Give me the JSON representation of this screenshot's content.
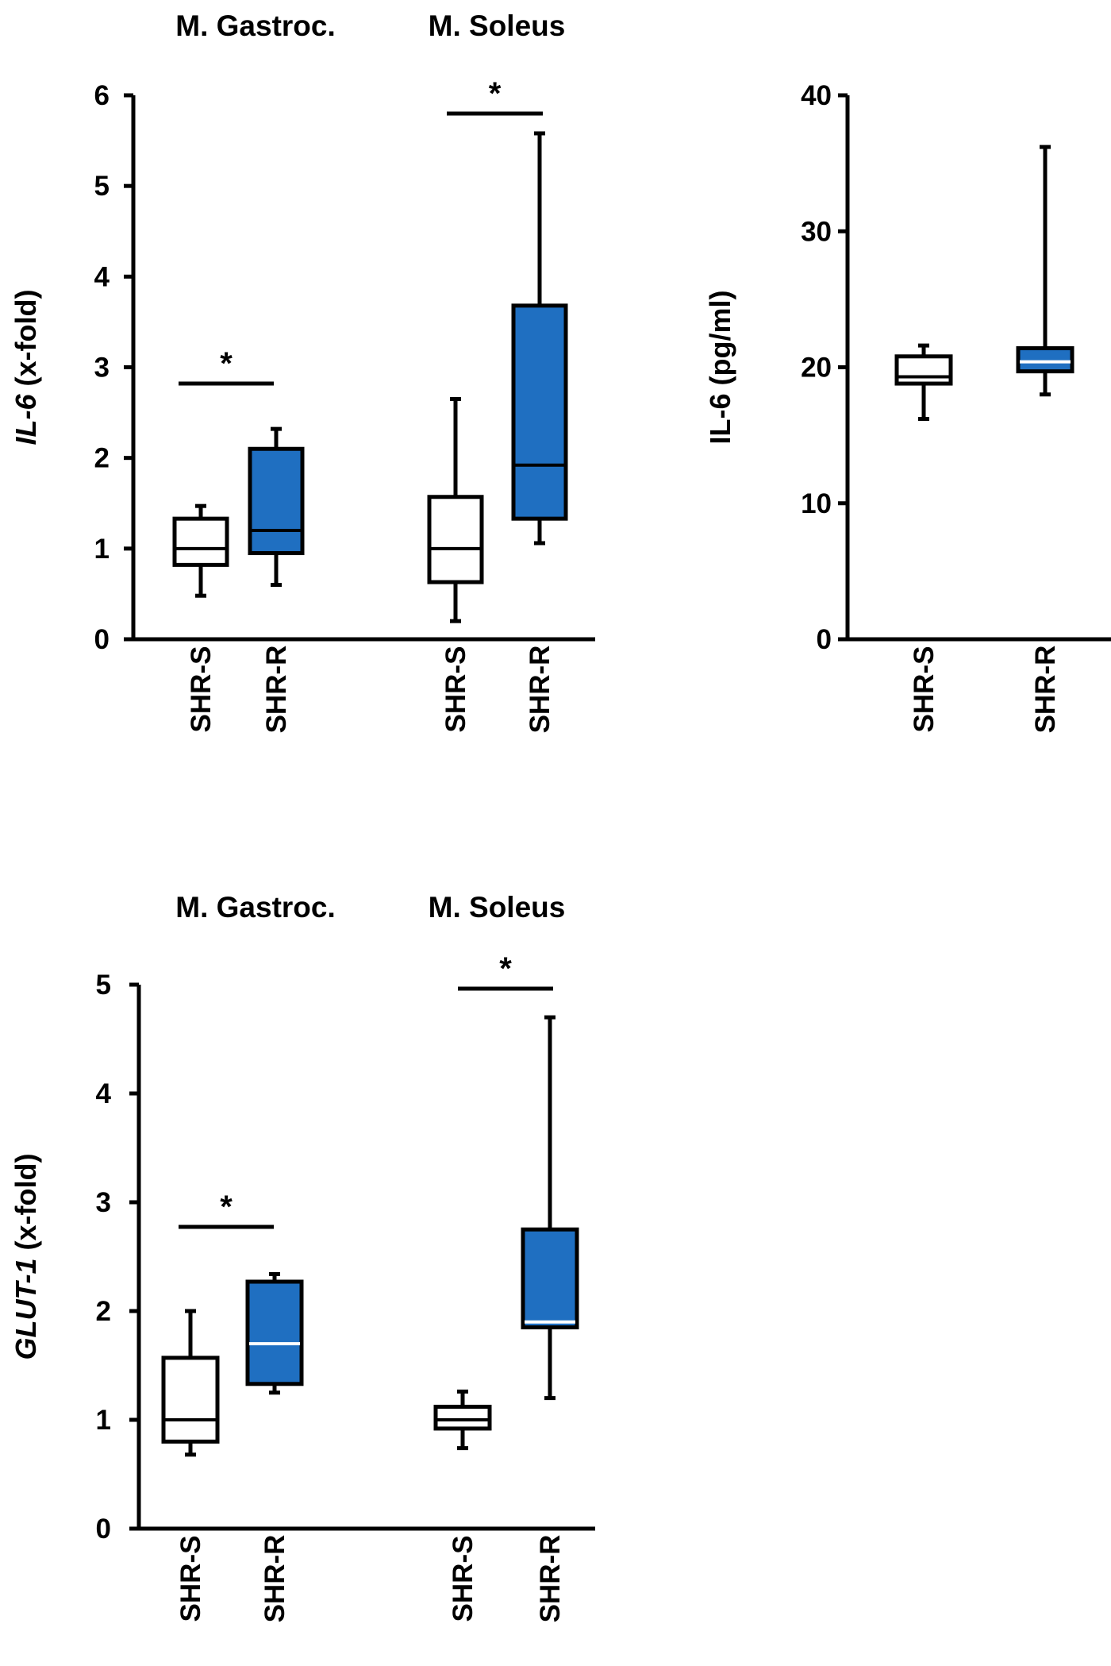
{
  "colors": {
    "control": "#ffffff",
    "treated": "#1f6fc1",
    "line": "#000000"
  },
  "chart_data": [
    {
      "type": "box",
      "id": "il6-mrna",
      "title": "",
      "ylabel_italic": "IL-6",
      "ylabel_rest": " (x-fold)",
      "ylim": [
        0,
        6
      ],
      "yticks": [
        "0",
        "1",
        "2",
        "3",
        "4",
        "5",
        "6"
      ],
      "groups": [
        {
          "title": "M. Gastroc.",
          "significance": "*",
          "boxes": [
            {
              "label": "SHR-S",
              "min": 0.48,
              "q1": 0.82,
              "median": 1.0,
              "q3": 1.33,
              "max": 1.47,
              "fill": "control"
            },
            {
              "label": "SHR-R",
              "min": 0.6,
              "q1": 0.95,
              "median": 1.2,
              "q3": 2.1,
              "max": 2.32,
              "fill": "treated"
            }
          ]
        },
        {
          "title": "M. Soleus",
          "significance": "*",
          "boxes": [
            {
              "label": "SHR-S",
              "min": 0.2,
              "q1": 0.63,
              "median": 1.0,
              "q3": 1.57,
              "max": 2.65,
              "fill": "control"
            },
            {
              "label": "SHR-R",
              "min": 1.06,
              "q1": 1.33,
              "median": 1.92,
              "q3": 3.68,
              "max": 5.58,
              "fill": "treated"
            }
          ]
        }
      ]
    },
    {
      "type": "box",
      "id": "il6-serum",
      "title": "",
      "ylabel_italic": "",
      "ylabel_rest": "IL-6 (pg/ml)",
      "ylim": [
        0,
        40
      ],
      "yticks": [
        "0",
        "10",
        "20",
        "30",
        "40"
      ],
      "groups": [
        {
          "title": "",
          "significance": "",
          "boxes": [
            {
              "label": "SHR-S",
              "min": 16.2,
              "q1": 18.8,
              "median": 19.3,
              "q3": 20.8,
              "max": 21.6,
              "fill": "control"
            },
            {
              "label": "SHR-R",
              "min": 18.0,
              "q1": 19.7,
              "median": 20.4,
              "q3": 21.4,
              "max": 36.2,
              "fill": "treated"
            }
          ]
        }
      ]
    },
    {
      "type": "box",
      "id": "glut1-mrna",
      "title": "",
      "ylabel_italic": "GLUT-1",
      "ylabel_rest": " (x-fold)",
      "ylim": [
        0,
        5
      ],
      "yticks": [
        "0",
        "1",
        "2",
        "3",
        "4",
        "5"
      ],
      "groups": [
        {
          "title": "M. Gastroc.",
          "significance": "*",
          "boxes": [
            {
              "label": "SHR-S",
              "min": 0.68,
              "q1": 0.8,
              "median": 1.0,
              "q3": 1.57,
              "max": 2.0,
              "fill": "control"
            },
            {
              "label": "SHR-R",
              "min": 1.25,
              "q1": 1.33,
              "median": 1.7,
              "q3": 2.27,
              "max": 2.34,
              "fill": "treated"
            }
          ]
        },
        {
          "title": "M. Soleus",
          "significance": "*",
          "boxes": [
            {
              "label": "SHR-S",
              "min": 0.74,
              "q1": 0.92,
              "median": 1.0,
              "q3": 1.12,
              "max": 1.26,
              "fill": "control"
            },
            {
              "label": "SHR-R",
              "min": 1.2,
              "q1": 1.85,
              "median": 1.9,
              "q3": 2.75,
              "max": 4.7,
              "fill": "treated"
            }
          ]
        }
      ]
    }
  ]
}
